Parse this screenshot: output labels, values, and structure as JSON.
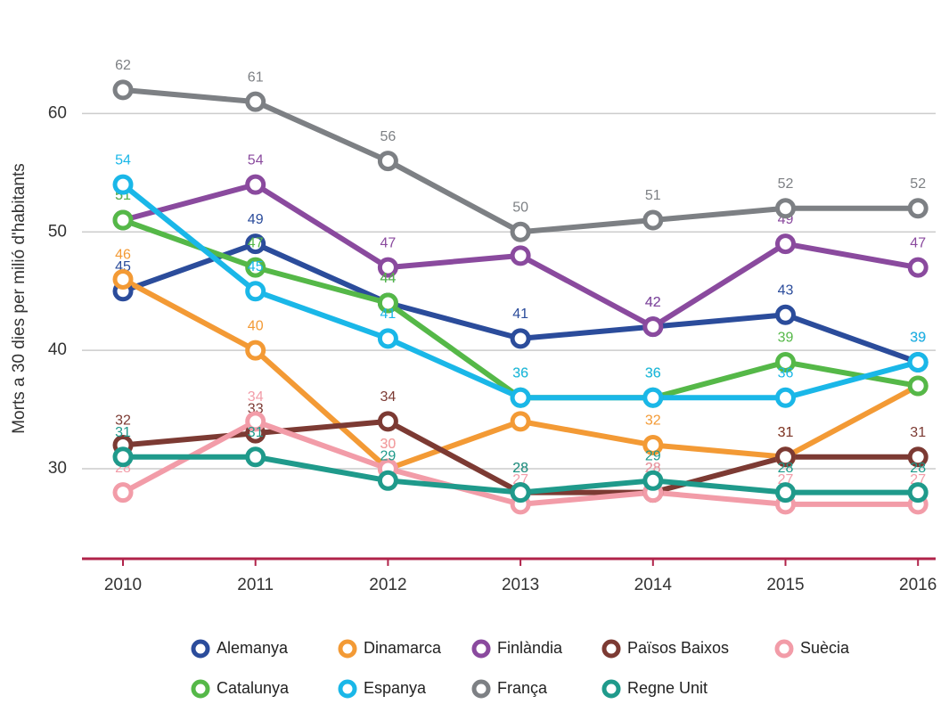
{
  "chart_data": {
    "type": "line",
    "y_label": "Morts a 30 dies per milió d'habitants",
    "categories": [
      "2010",
      "2011",
      "2012",
      "2013",
      "2014",
      "2015",
      "2016"
    ],
    "ylim": [
      22.4,
      65
    ],
    "yticks": [
      30,
      40,
      50,
      60
    ],
    "grid": true,
    "series": [
      {
        "name": "Alemanya",
        "color": "#2b4c9b",
        "values": [
          45,
          49,
          44,
          41,
          42,
          43,
          39
        ]
      },
      {
        "name": "Dinamarca",
        "color": "#f39a35",
        "values": [
          46,
          40,
          30,
          34,
          32,
          31,
          37
        ]
      },
      {
        "name": "Finlàndia",
        "color": "#8a4a9e",
        "values": [
          51,
          54,
          47,
          48,
          42,
          49,
          47
        ]
      },
      {
        "name": "Països Baixos",
        "color": "#7c3a33",
        "values": [
          32,
          33,
          34,
          28,
          28,
          31,
          31
        ]
      },
      {
        "name": "Suècia",
        "color": "#f29ca8",
        "values": [
          28,
          34,
          30,
          27,
          28,
          27,
          27
        ]
      },
      {
        "name": "Catalunya",
        "color": "#55b848",
        "values": [
          51,
          47,
          44,
          36,
          36,
          39,
          37
        ]
      },
      {
        "name": "Espanya",
        "color": "#1ab7e8",
        "values": [
          54,
          45,
          41,
          36,
          36,
          36,
          39
        ]
      },
      {
        "name": "França",
        "color": "#7d8084",
        "values": [
          62,
          61,
          56,
          50,
          51,
          52,
          52
        ]
      },
      {
        "name": "Regne Unit",
        "color": "#1f9a8b",
        "values": [
          31,
          31,
          29,
          28,
          29,
          28,
          28
        ]
      }
    ]
  }
}
